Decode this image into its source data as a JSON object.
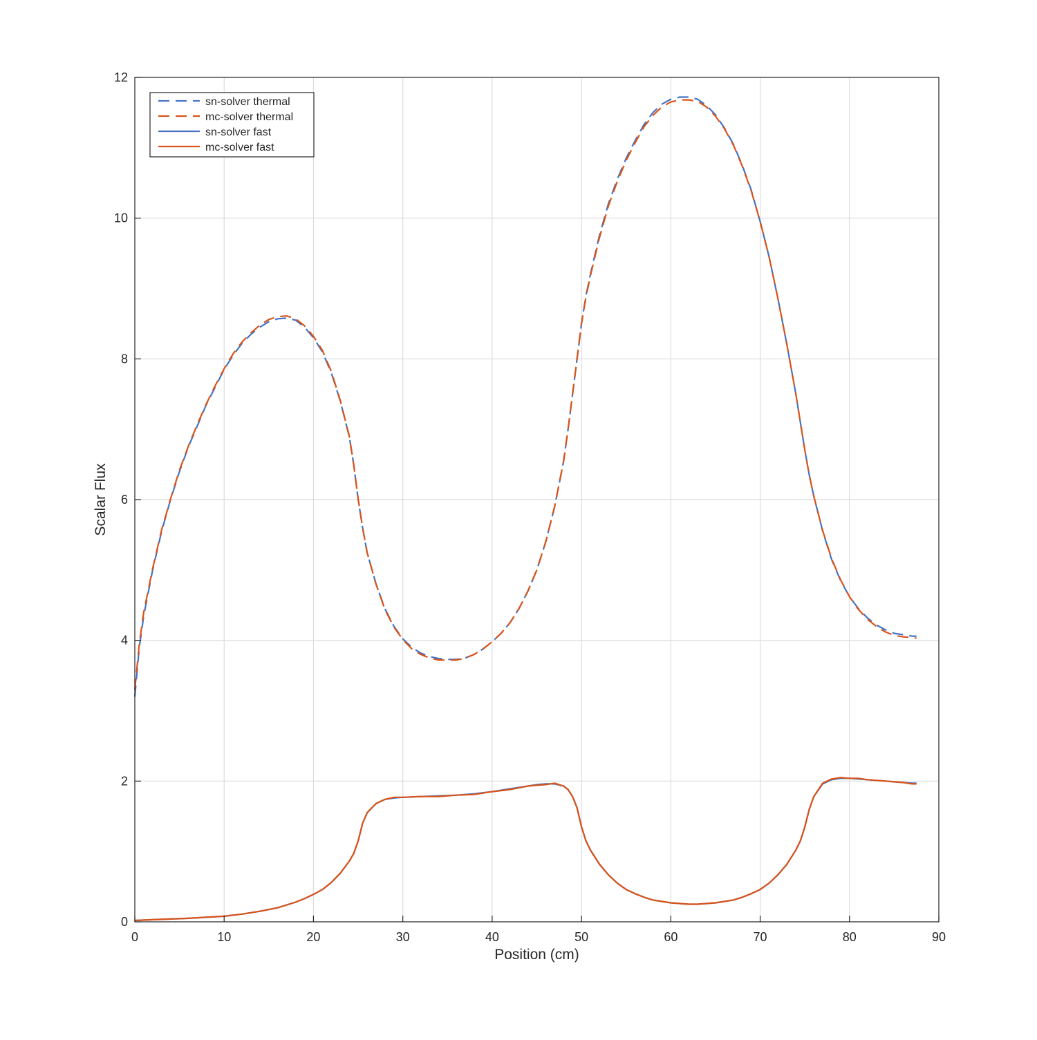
{
  "chart_data": {
    "type": "line",
    "title": "",
    "xlabel": "Position (cm)",
    "ylabel": "Scalar Flux",
    "xlim": [
      0,
      90
    ],
    "ylim": [
      0,
      12
    ],
    "xticks": [
      "0",
      "10",
      "20",
      "30",
      "40",
      "50",
      "60",
      "70",
      "80",
      "90"
    ],
    "yticks": [
      "0",
      "2",
      "4",
      "6",
      "8",
      "10",
      "12"
    ],
    "grid": true,
    "legend_position": "top-left",
    "series": [
      {
        "name": "sn-solver thermal",
        "style": "dashed",
        "color": "#4472c4",
        "x": [
          0,
          0.5,
          1,
          2,
          3,
          4,
          5,
          6,
          7,
          8,
          9,
          10,
          11,
          12,
          13,
          14,
          15,
          16,
          17,
          18,
          19,
          20,
          21,
          22,
          23,
          24,
          24.5,
          25,
          25.5,
          26,
          27,
          28,
          29,
          30,
          31,
          32,
          33,
          34,
          35,
          36,
          37,
          38,
          39,
          40,
          41,
          42,
          43,
          44,
          45,
          46,
          47,
          48,
          48.5,
          49,
          49.5,
          50,
          50.5,
          51,
          52,
          53,
          54,
          55,
          56,
          57,
          58,
          59,
          60,
          61,
          62,
          63,
          64,
          65,
          66,
          67,
          68,
          69,
          70,
          71,
          72,
          73,
          74,
          74.5,
          75,
          75.5,
          76,
          77,
          78,
          79,
          80,
          81,
          82,
          83,
          84,
          85,
          86,
          87,
          87.5
        ],
        "y": [
          3.2,
          3.9,
          4.35,
          5.0,
          5.55,
          6.0,
          6.4,
          6.75,
          7.05,
          7.35,
          7.6,
          7.85,
          8.05,
          8.22,
          8.35,
          8.45,
          8.53,
          8.57,
          8.58,
          8.55,
          8.45,
          8.3,
          8.1,
          7.8,
          7.4,
          6.9,
          6.5,
          6.0,
          5.6,
          5.25,
          4.8,
          4.45,
          4.2,
          4.02,
          3.9,
          3.82,
          3.77,
          3.74,
          3.73,
          3.73,
          3.75,
          3.8,
          3.88,
          3.98,
          4.1,
          4.25,
          4.45,
          4.7,
          5.0,
          5.4,
          5.9,
          6.55,
          7.0,
          7.5,
          8.0,
          8.5,
          8.9,
          9.2,
          9.75,
          10.2,
          10.55,
          10.85,
          11.1,
          11.33,
          11.5,
          11.62,
          11.69,
          11.72,
          11.72,
          11.69,
          11.6,
          11.47,
          11.28,
          11.05,
          10.75,
          10.4,
          9.95,
          9.45,
          8.85,
          8.2,
          7.5,
          7.1,
          6.7,
          6.35,
          6.05,
          5.55,
          5.15,
          4.85,
          4.62,
          4.45,
          4.32,
          4.22,
          4.15,
          4.1,
          4.08,
          4.06,
          4.06
        ]
      },
      {
        "name": "mc-solver thermal",
        "style": "dashed",
        "color": "#d95319",
        "x": [
          0,
          0.5,
          1,
          2,
          3,
          4,
          5,
          6,
          7,
          8,
          9,
          10,
          11,
          12,
          13,
          14,
          15,
          16,
          17,
          18,
          19,
          20,
          21,
          22,
          23,
          24,
          24.5,
          25,
          25.5,
          26,
          27,
          28,
          29,
          30,
          31,
          32,
          33,
          34,
          35,
          36,
          37,
          38,
          39,
          40,
          41,
          42,
          43,
          44,
          45,
          46,
          47,
          48,
          48.5,
          49,
          49.5,
          50,
          50.5,
          51,
          52,
          53,
          54,
          55,
          56,
          57,
          58,
          59,
          60,
          61,
          62,
          63,
          64,
          65,
          66,
          67,
          68,
          69,
          70,
          71,
          72,
          73,
          74,
          74.5,
          75,
          75.5,
          76,
          77,
          78,
          79,
          80,
          81,
          82,
          83,
          84,
          85,
          86,
          87,
          87.5
        ],
        "y": [
          3.3,
          3.95,
          4.4,
          5.02,
          5.57,
          6.01,
          6.42,
          6.76,
          7.07,
          7.36,
          7.62,
          7.86,
          8.07,
          8.24,
          8.37,
          8.48,
          8.56,
          8.6,
          8.61,
          8.57,
          8.47,
          8.32,
          8.12,
          7.82,
          7.41,
          6.91,
          6.5,
          6.01,
          5.6,
          5.25,
          4.8,
          4.44,
          4.19,
          4.01,
          3.88,
          3.8,
          3.75,
          3.72,
          3.72,
          3.72,
          3.75,
          3.8,
          3.88,
          3.98,
          4.1,
          4.25,
          4.45,
          4.7,
          5.0,
          5.4,
          5.9,
          6.55,
          7.0,
          7.5,
          8.0,
          8.5,
          8.88,
          9.18,
          9.72,
          10.17,
          10.52,
          10.82,
          11.07,
          11.3,
          11.46,
          11.58,
          11.65,
          11.68,
          11.68,
          11.66,
          11.58,
          11.45,
          11.27,
          11.04,
          10.74,
          10.39,
          9.95,
          9.45,
          8.85,
          8.2,
          7.5,
          7.1,
          6.7,
          6.35,
          6.05,
          5.56,
          5.16,
          4.86,
          4.62,
          4.44,
          4.3,
          4.2,
          4.12,
          4.07,
          4.05,
          4.04,
          4.03
        ]
      },
      {
        "name": "sn-solver fast",
        "style": "solid",
        "color": "#4472c4",
        "x": [
          0,
          2,
          4,
          6,
          8,
          10,
          12,
          14,
          16,
          18,
          19,
          20,
          21,
          22,
          23,
          24,
          24.5,
          25,
          25.5,
          26,
          27,
          28,
          29,
          30,
          32,
          34,
          36,
          38,
          40,
          42,
          44,
          45,
          46,
          47,
          48,
          48.5,
          49,
          49.5,
          50,
          50.5,
          51,
          52,
          53,
          54,
          55,
          56,
          57,
          58,
          59,
          60,
          61,
          62,
          63,
          64,
          65,
          66,
          67,
          68,
          69,
          70,
          71,
          72,
          73,
          74,
          74.5,
          75,
          75.5,
          76,
          77,
          78,
          79,
          80,
          81,
          82,
          83,
          84,
          85,
          86,
          87,
          87.5
        ],
        "y": [
          0.02,
          0.03,
          0.04,
          0.05,
          0.065,
          0.08,
          0.11,
          0.15,
          0.2,
          0.28,
          0.33,
          0.39,
          0.46,
          0.56,
          0.69,
          0.86,
          0.97,
          1.15,
          1.4,
          1.55,
          1.68,
          1.74,
          1.76,
          1.77,
          1.78,
          1.79,
          1.8,
          1.82,
          1.85,
          1.89,
          1.93,
          1.95,
          1.96,
          1.96,
          1.93,
          1.88,
          1.78,
          1.62,
          1.35,
          1.15,
          1.02,
          0.82,
          0.67,
          0.55,
          0.46,
          0.4,
          0.35,
          0.31,
          0.29,
          0.27,
          0.26,
          0.25,
          0.25,
          0.26,
          0.27,
          0.29,
          0.31,
          0.35,
          0.4,
          0.46,
          0.55,
          0.67,
          0.82,
          1.02,
          1.15,
          1.35,
          1.6,
          1.78,
          1.96,
          2.02,
          2.04,
          2.04,
          2.03,
          2.02,
          2.01,
          2.0,
          1.99,
          1.98,
          1.97,
          1.97
        ]
      },
      {
        "name": "mc-solver fast",
        "style": "solid",
        "color": "#d95319",
        "x": [
          0,
          2,
          4,
          6,
          8,
          10,
          12,
          14,
          16,
          18,
          19,
          20,
          21,
          22,
          23,
          24,
          24.5,
          25,
          25.5,
          26,
          27,
          28,
          29,
          30,
          32,
          34,
          36,
          38,
          40,
          42,
          44,
          45,
          46,
          47,
          48,
          48.5,
          49,
          49.5,
          50,
          50.5,
          51,
          52,
          53,
          54,
          55,
          56,
          57,
          58,
          59,
          60,
          61,
          62,
          63,
          64,
          65,
          66,
          67,
          68,
          69,
          70,
          71,
          72,
          73,
          74,
          74.5,
          75,
          75.5,
          76,
          77,
          78,
          79,
          80,
          81,
          82,
          83,
          84,
          85,
          86,
          87,
          87.5
        ],
        "y": [
          0.02,
          0.03,
          0.04,
          0.05,
          0.065,
          0.08,
          0.11,
          0.15,
          0.2,
          0.28,
          0.33,
          0.39,
          0.46,
          0.56,
          0.69,
          0.86,
          0.97,
          1.15,
          1.4,
          1.55,
          1.68,
          1.74,
          1.77,
          1.77,
          1.78,
          1.78,
          1.8,
          1.81,
          1.85,
          1.88,
          1.93,
          1.94,
          1.95,
          1.97,
          1.93,
          1.88,
          1.78,
          1.62,
          1.35,
          1.15,
          1.02,
          0.82,
          0.67,
          0.55,
          0.46,
          0.4,
          0.35,
          0.31,
          0.29,
          0.27,
          0.26,
          0.25,
          0.25,
          0.26,
          0.27,
          0.29,
          0.31,
          0.35,
          0.4,
          0.46,
          0.55,
          0.67,
          0.82,
          1.02,
          1.15,
          1.35,
          1.6,
          1.78,
          1.97,
          2.03,
          2.05,
          2.04,
          2.04,
          2.02,
          2.01,
          2.0,
          1.99,
          1.98,
          1.96,
          1.96
        ]
      }
    ]
  }
}
